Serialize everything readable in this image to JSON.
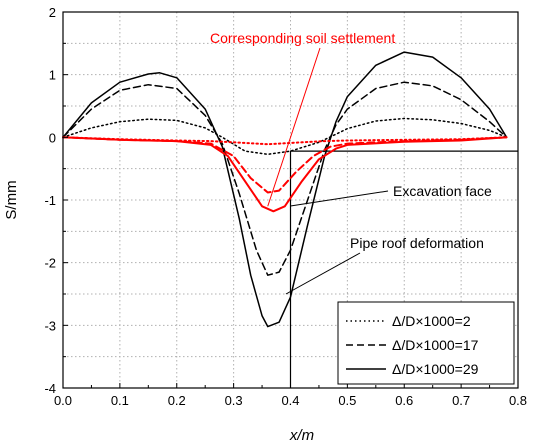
{
  "chart_data": {
    "type": "line",
    "xlabel": "x/m",
    "ylabel": "S/mm",
    "xlim": [
      0,
      0.8
    ],
    "ylim": [
      -4,
      2
    ],
    "xticks": [
      "0.0",
      "0.1",
      "0.2",
      "0.3",
      "0.4",
      "0.5",
      "0.6",
      "0.7",
      "0.8"
    ],
    "yticks": [
      "2",
      "1",
      "0",
      "-1",
      "-2",
      "-3",
      "-4"
    ],
    "grid": true,
    "legend_position": "bottom-right",
    "series": [
      {
        "name": "Δ/D×1000=2",
        "style": "dotted",
        "color": "#000000",
        "x": [
          0.0,
          0.05,
          0.1,
          0.15,
          0.2,
          0.25,
          0.28,
          0.32,
          0.36,
          0.4,
          0.45,
          0.48,
          0.5,
          0.55,
          0.6,
          0.65,
          0.7,
          0.75,
          0.78
        ],
        "y": [
          0.0,
          0.15,
          0.25,
          0.29,
          0.27,
          0.15,
          0.0,
          -0.22,
          -0.27,
          -0.22,
          -0.08,
          0.05,
          0.14,
          0.26,
          0.3,
          0.28,
          0.22,
          0.11,
          0.0
        ]
      },
      {
        "name": "Δ/D×1000=17",
        "style": "dashed",
        "color": "#000000",
        "x": [
          0.0,
          0.05,
          0.1,
          0.15,
          0.2,
          0.25,
          0.28,
          0.31,
          0.34,
          0.36,
          0.38,
          0.4,
          0.43,
          0.46,
          0.48,
          0.5,
          0.55,
          0.6,
          0.65,
          0.7,
          0.75,
          0.78
        ],
        "y": [
          0.0,
          0.45,
          0.75,
          0.84,
          0.78,
          0.35,
          -0.1,
          -0.9,
          -1.8,
          -2.2,
          -2.15,
          -1.8,
          -1.0,
          -0.2,
          0.2,
          0.45,
          0.78,
          0.88,
          0.82,
          0.6,
          0.25,
          0.0
        ]
      },
      {
        "name": "Δ/D×1000=29",
        "style": "solid",
        "color": "#000000",
        "x": [
          0.0,
          0.05,
          0.1,
          0.15,
          0.17,
          0.2,
          0.25,
          0.28,
          0.31,
          0.33,
          0.35,
          0.36,
          0.38,
          0.4,
          0.43,
          0.46,
          0.48,
          0.5,
          0.55,
          0.6,
          0.65,
          0.7,
          0.75,
          0.78
        ],
        "y": [
          0.0,
          0.55,
          0.88,
          1.01,
          1.03,
          0.95,
          0.45,
          -0.15,
          -1.3,
          -2.2,
          -2.85,
          -3.02,
          -2.95,
          -2.55,
          -1.4,
          -0.3,
          0.25,
          0.65,
          1.15,
          1.36,
          1.28,
          0.95,
          0.45,
          0.0
        ]
      },
      {
        "name": "Corresponding soil settlement Δ/D×1000=2",
        "style": "dotted",
        "color": "#ff0000",
        "x": [
          0.0,
          0.1,
          0.2,
          0.26,
          0.3,
          0.34,
          0.36,
          0.38,
          0.42,
          0.46,
          0.5,
          0.6,
          0.7,
          0.78
        ],
        "y": [
          0.0,
          -0.03,
          -0.05,
          -0.06,
          -0.08,
          -0.1,
          -0.11,
          -0.1,
          -0.08,
          -0.06,
          -0.05,
          -0.04,
          -0.03,
          0.0
        ]
      },
      {
        "name": "Corresponding soil settlement Δ/D×1000=17",
        "style": "dashed",
        "color": "#ff0000",
        "x": [
          0.0,
          0.1,
          0.2,
          0.26,
          0.3,
          0.33,
          0.36,
          0.38,
          0.41,
          0.44,
          0.47,
          0.5,
          0.6,
          0.7,
          0.78
        ],
        "y": [
          0.0,
          -0.04,
          -0.06,
          -0.1,
          -0.3,
          -0.65,
          -0.88,
          -0.85,
          -0.55,
          -0.3,
          -0.15,
          -0.1,
          -0.06,
          -0.04,
          0.0
        ]
      },
      {
        "name": "Corresponding soil settlement Δ/D×1000=29",
        "style": "solid",
        "color": "#ff0000",
        "x": [
          0.0,
          0.1,
          0.2,
          0.26,
          0.29,
          0.32,
          0.35,
          0.37,
          0.39,
          0.42,
          0.45,
          0.48,
          0.5,
          0.6,
          0.7,
          0.78
        ],
        "y": [
          0.0,
          -0.04,
          -0.06,
          -0.12,
          -0.3,
          -0.7,
          -1.1,
          -1.18,
          -1.1,
          -0.7,
          -0.35,
          -0.18,
          -0.12,
          -0.07,
          -0.05,
          0.0
        ]
      }
    ],
    "annotations": [
      {
        "text": "Corresponding soil settlement",
        "color": "#ff0000"
      },
      {
        "text": "Excavation face",
        "color": "#000000"
      },
      {
        "text": "Pipe roof deformation",
        "color": "#000000"
      }
    ],
    "legend": [
      {
        "label": "Δ/D×1000=2",
        "style": "dotted"
      },
      {
        "label": "Δ/D×1000=17",
        "style": "dashed"
      },
      {
        "label": "Δ/D×1000=29",
        "style": "solid"
      }
    ]
  }
}
